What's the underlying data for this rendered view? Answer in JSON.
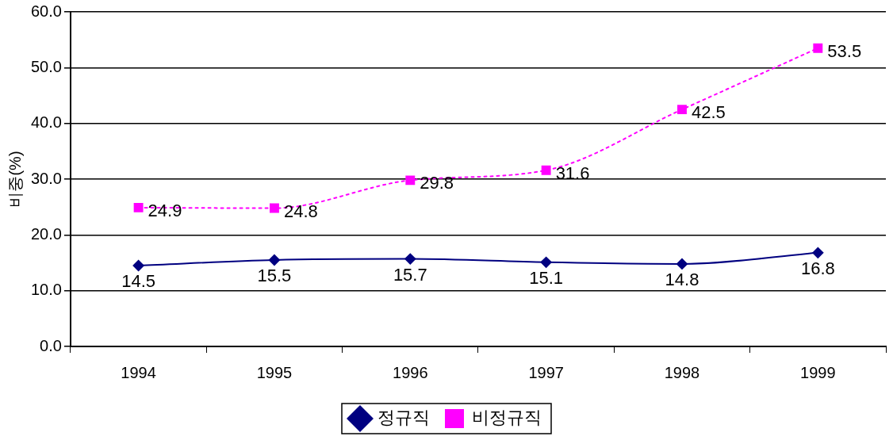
{
  "chart_data": {
    "type": "line",
    "ylabel": "비중(%)",
    "categories": [
      "1994",
      "1995",
      "1996",
      "1997",
      "1998",
      "1999"
    ],
    "series": [
      {
        "name": "정규직",
        "color": "#000080",
        "values": [
          14.5,
          15.5,
          15.7,
          15.1,
          14.8,
          16.8
        ],
        "marker": "diamond",
        "line_style": "solid"
      },
      {
        "name": "비정규직",
        "color": "#ff00ff",
        "values": [
          24.9,
          24.8,
          29.8,
          31.6,
          42.5,
          53.5
        ],
        "marker": "square",
        "line_style": "dotted"
      }
    ],
    "ylim": [
      0,
      60
    ],
    "yticks": [
      {
        "value": 0,
        "label": "0.0"
      },
      {
        "value": 10,
        "label": "10.0"
      },
      {
        "value": 20,
        "label": "20.0"
      },
      {
        "value": 30,
        "label": "30.0"
      },
      {
        "value": 40,
        "label": "40.0"
      },
      {
        "value": 50,
        "label": "50.0"
      },
      {
        "value": 60,
        "label": "60.0"
      }
    ],
    "grid": "y",
    "legend": "bottom",
    "data_labels": true
  }
}
